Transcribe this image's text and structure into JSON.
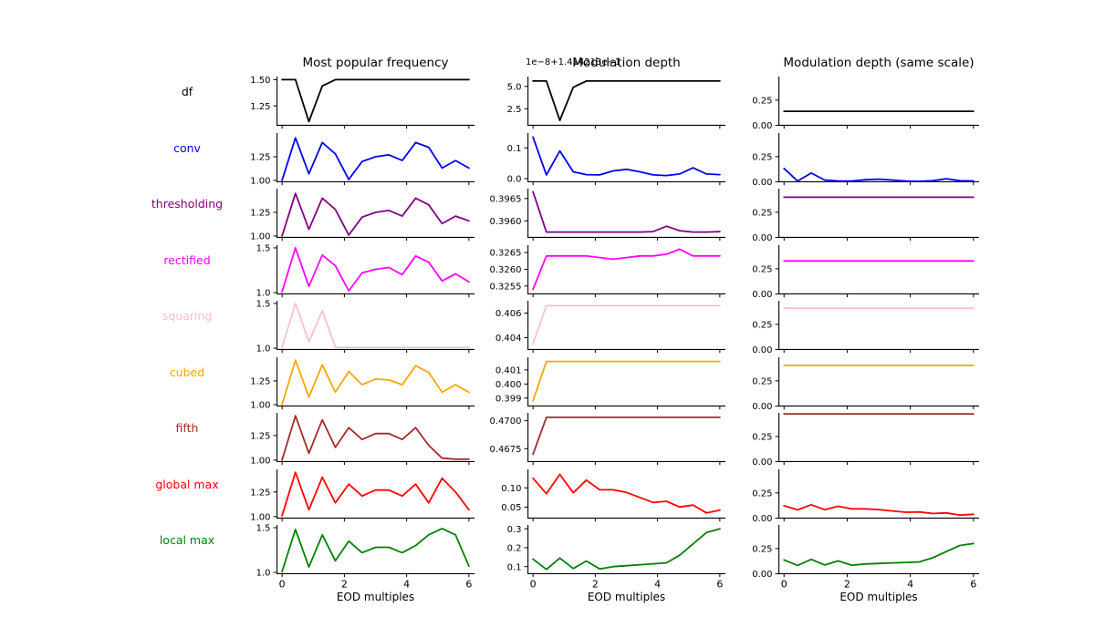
{
  "figure": {
    "background": "#ffffff"
  },
  "chart_data": {
    "type": "line",
    "xlabel": "EOD multiples",
    "x": [
      0,
      0.43,
      0.86,
      1.29,
      1.71,
      2.14,
      2.57,
      3.0,
      3.43,
      3.86,
      4.29,
      4.71,
      5.14,
      5.57,
      6.0
    ],
    "x_ticks": [
      0,
      2,
      4,
      6
    ],
    "x_tick_labels": [
      "0",
      "2",
      "4",
      "6"
    ],
    "column_titles": [
      "Most popular frequency",
      "Modulation depth",
      "Modulation depth (same scale)"
    ],
    "depth_offset_text": "1e−8+1.414213e−1",
    "same_scale_ylim": [
      0,
      0.48
    ],
    "rows": [
      {
        "label": "df",
        "color": "#000000",
        "freq": {
          "values": [
            1.5,
            1.5,
            1.1,
            1.44,
            1.5,
            1.5,
            1.5,
            1.5,
            1.5,
            1.5,
            1.5,
            1.5,
            1.5,
            1.5,
            1.5
          ],
          "ylim": [
            1.06,
            1.53
          ],
          "yticks": [
            [
              1.5,
              "1.50"
            ],
            [
              1.25,
              "1.25"
            ]
          ]
        },
        "depth": {
          "values": [
            5.6,
            5.6,
            1.2,
            4.9,
            5.6,
            5.6,
            5.6,
            5.6,
            5.6,
            5.6,
            5.6,
            5.6,
            5.6,
            5.6,
            5.6
          ],
          "ylim": [
            0.6,
            6.1
          ],
          "yticks": [
            [
              5.0,
              "5.0"
            ],
            [
              2.5,
              "2.5"
            ]
          ]
        },
        "same": {
          "flat": 0.1414,
          "ylim": [
            0,
            0.48
          ],
          "yticks": [
            [
              0.25,
              "0.25"
            ],
            [
              0.0,
              "0.00"
            ]
          ]
        }
      },
      {
        "label": "conv",
        "color": "#0000ee",
        "freq": {
          "values": [
            1.0,
            1.45,
            1.07,
            1.4,
            1.28,
            1.01,
            1.2,
            1.25,
            1.27,
            1.21,
            1.4,
            1.35,
            1.13,
            1.21,
            1.13
          ],
          "ylim": [
            0.98,
            1.5
          ],
          "yticks": [
            [
              1.25,
              "1.25"
            ],
            [
              1.0,
              "1.00"
            ]
          ]
        },
        "depth": {
          "values": [
            0.135,
            0.012,
            0.09,
            0.022,
            0.013,
            0.012,
            0.025,
            0.03,
            0.022,
            0.012,
            0.01,
            0.015,
            0.035,
            0.015,
            0.013
          ],
          "ylim": [
            -0.012,
            0.148
          ],
          "yticks": [
            [
              0.1,
              "0.1"
            ],
            [
              0.0,
              "0.0"
            ]
          ]
        },
        "same": {
          "values": [
            0.135,
            0.012,
            0.09,
            0.022,
            0.013,
            0.012,
            0.025,
            0.03,
            0.022,
            0.012,
            0.01,
            0.015,
            0.035,
            0.015,
            0.013
          ],
          "ylim": [
            0,
            0.48
          ],
          "yticks": [
            [
              0.25,
              "0.25"
            ],
            [
              0.0,
              "0.00"
            ]
          ]
        }
      },
      {
        "label": "thresholding",
        "color": "#800080",
        "freq": {
          "values": [
            1.0,
            1.45,
            1.07,
            1.4,
            1.28,
            1.01,
            1.2,
            1.25,
            1.27,
            1.21,
            1.4,
            1.33,
            1.13,
            1.21,
            1.16
          ],
          "ylim": [
            0.98,
            1.5
          ],
          "yticks": [
            [
              1.25,
              "1.25"
            ],
            [
              1.0,
              "1.00"
            ]
          ]
        },
        "depth": {
          "values": [
            0.39665,
            0.39575,
            0.39575,
            0.39575,
            0.39575,
            0.39575,
            0.39575,
            0.39575,
            0.39575,
            0.39576,
            0.39588,
            0.39578,
            0.39575,
            0.39575,
            0.39576
          ],
          "ylim": [
            0.39562,
            0.39672
          ],
          "yticks": [
            [
              0.3965,
              "0.3965"
            ],
            [
              0.396,
              "0.3960"
            ]
          ]
        },
        "same": {
          "flat": 0.396,
          "ylim": [
            0,
            0.48
          ],
          "yticks": [
            [
              0.25,
              "0.25"
            ],
            [
              0.0,
              "0.00"
            ]
          ]
        }
      },
      {
        "label": "rectified",
        "color": "#ff00ff",
        "freq": {
          "values": [
            1.01,
            1.5,
            1.07,
            1.42,
            1.3,
            1.02,
            1.22,
            1.26,
            1.28,
            1.2,
            1.41,
            1.34,
            1.13,
            1.21,
            1.12
          ],
          "ylim": [
            0.98,
            1.53
          ],
          "yticks": [
            [
              1.5,
              "1.5"
            ],
            [
              1.0,
              "1.0"
            ]
          ]
        },
        "depth": {
          "values": [
            0.3254,
            0.3264,
            0.3264,
            0.3264,
            0.3264,
            0.32635,
            0.3263,
            0.32635,
            0.3264,
            0.3264,
            0.32645,
            0.3266,
            0.3264,
            0.3264,
            0.3264
          ],
          "ylim": [
            0.32525,
            0.32672
          ],
          "yticks": [
            [
              0.3265,
              "0.3265"
            ],
            [
              0.326,
              "0.3260"
            ],
            [
              0.3255,
              "0.3255"
            ]
          ]
        },
        "same": {
          "flat": 0.326,
          "ylim": [
            0,
            0.48
          ],
          "yticks": [
            [
              0.25,
              "0.25"
            ],
            [
              0.0,
              "0.00"
            ]
          ]
        }
      },
      {
        "label": "squaring",
        "color": "#ffc0cb",
        "freq": {
          "values": [
            1.01,
            1.5,
            1.07,
            1.42,
            1.01,
            1.01,
            1.01,
            1.01,
            1.01,
            1.01,
            1.01,
            1.01,
            1.01,
            1.01,
            1.01
          ],
          "ylim": [
            0.98,
            1.53
          ],
          "yticks": [
            [
              1.5,
              "1.5"
            ],
            [
              1.0,
              "1.0"
            ]
          ]
        },
        "depth": {
          "values": [
            0.4035,
            0.4066,
            0.4066,
            0.4066,
            0.4066,
            0.4066,
            0.4066,
            0.4066,
            0.4066,
            0.4066,
            0.4066,
            0.4066,
            0.4066,
            0.4066,
            0.4066
          ],
          "ylim": [
            0.403,
            0.407
          ],
          "yticks": [
            [
              0.406,
              "0.406"
            ],
            [
              0.404,
              "0.404"
            ]
          ]
        },
        "same": {
          "flat": 0.407,
          "ylim": [
            0,
            0.48
          ],
          "yticks": [
            [
              0.25,
              "0.25"
            ],
            [
              0.0,
              "0.00"
            ]
          ]
        }
      },
      {
        "label": "cubed",
        "color": "#ffa500",
        "freq": {
          "values": [
            1.0,
            1.47,
            1.08,
            1.42,
            1.13,
            1.35,
            1.21,
            1.27,
            1.26,
            1.21,
            1.41,
            1.34,
            1.13,
            1.21,
            1.13
          ],
          "ylim": [
            0.98,
            1.5
          ],
          "yticks": [
            [
              1.25,
              "1.25"
            ],
            [
              1.0,
              "1.00"
            ]
          ]
        },
        "depth": {
          "values": [
            0.3988,
            0.4016,
            0.4016,
            0.4016,
            0.4016,
            0.4016,
            0.4016,
            0.4016,
            0.4016,
            0.4016,
            0.4016,
            0.4016,
            0.4016,
            0.4016,
            0.4016
          ],
          "ylim": [
            0.3984,
            0.4019
          ],
          "yticks": [
            [
              0.401,
              "0.401"
            ],
            [
              0.4,
              "0.400"
            ],
            [
              0.399,
              "0.399"
            ]
          ]
        },
        "same": {
          "flat": 0.401,
          "ylim": [
            0,
            0.48
          ],
          "yticks": [
            [
              0.25,
              "0.25"
            ],
            [
              0.0,
              "0.00"
            ]
          ]
        }
      },
      {
        "label": "fifth",
        "color": "#a52a2a",
        "freq": {
          "values": [
            1.0,
            1.45,
            1.07,
            1.41,
            1.13,
            1.33,
            1.21,
            1.27,
            1.27,
            1.21,
            1.33,
            1.15,
            1.02,
            1.01,
            1.01
          ],
          "ylim": [
            0.98,
            1.48
          ],
          "yticks": [
            [
              1.25,
              "1.25"
            ],
            [
              1.0,
              "1.00"
            ]
          ]
        },
        "depth": {
          "values": [
            0.467,
            0.4703,
            0.4703,
            0.4703,
            0.4703,
            0.4703,
            0.4703,
            0.4703,
            0.4703,
            0.4703,
            0.4703,
            0.4703,
            0.4703,
            0.4703,
            0.4703
          ],
          "ylim": [
            0.4663,
            0.4707
          ],
          "yticks": [
            [
              0.47,
              "0.4700"
            ],
            [
              0.4675,
              "0.4675"
            ]
          ]
        },
        "same": {
          "flat": 0.47,
          "ylim": [
            0,
            0.48
          ],
          "yticks": [
            [
              0.25,
              "0.25"
            ],
            [
              0.0,
              "0.00"
            ]
          ]
        }
      },
      {
        "label": "global max",
        "color": "#ff0000",
        "freq": {
          "values": [
            1.01,
            1.45,
            1.07,
            1.4,
            1.14,
            1.33,
            1.21,
            1.27,
            1.27,
            1.21,
            1.33,
            1.14,
            1.39,
            1.25,
            1.07
          ],
          "ylim": [
            0.98,
            1.48
          ],
          "yticks": [
            [
              1.25,
              "1.25"
            ],
            [
              1.0,
              "1.00"
            ]
          ]
        },
        "depth": {
          "values": [
            0.125,
            0.085,
            0.135,
            0.087,
            0.12,
            0.095,
            0.095,
            0.088,
            0.075,
            0.062,
            0.065,
            0.05,
            0.055,
            0.035,
            0.042
          ],
          "ylim": [
            0.02,
            0.148
          ],
          "yticks": [
            [
              0.1,
              "0.10"
            ],
            [
              0.05,
              "0.05"
            ]
          ]
        },
        "same": {
          "values": [
            0.125,
            0.085,
            0.135,
            0.087,
            0.12,
            0.095,
            0.095,
            0.088,
            0.075,
            0.062,
            0.065,
            0.05,
            0.055,
            0.035,
            0.042
          ],
          "ylim": [
            0,
            0.48
          ],
          "yticks": [
            [
              0.25,
              "0.25"
            ],
            [
              0.0,
              "0.00"
            ]
          ]
        }
      },
      {
        "label": "local max",
        "color": "#008000",
        "freq": {
          "values": [
            1.01,
            1.48,
            1.06,
            1.42,
            1.13,
            1.35,
            1.22,
            1.28,
            1.28,
            1.22,
            1.3,
            1.42,
            1.49,
            1.42,
            1.07
          ],
          "ylim": [
            0.98,
            1.53
          ],
          "yticks": [
            [
              1.5,
              "1.5"
            ],
            [
              1.0,
              "1.0"
            ]
          ]
        },
        "depth": {
          "values": [
            0.14,
            0.085,
            0.145,
            0.09,
            0.13,
            0.088,
            0.1,
            0.105,
            0.11,
            0.115,
            0.12,
            0.16,
            0.22,
            0.28,
            0.3
          ],
          "ylim": [
            0.06,
            0.32
          ],
          "yticks": [
            [
              0.3,
              "0.3"
            ],
            [
              0.2,
              "0.2"
            ],
            [
              0.1,
              "0.1"
            ]
          ]
        },
        "same": {
          "values": [
            0.14,
            0.085,
            0.145,
            0.09,
            0.13,
            0.088,
            0.1,
            0.105,
            0.11,
            0.115,
            0.12,
            0.16,
            0.22,
            0.28,
            0.3
          ],
          "ylim": [
            0,
            0.48
          ],
          "yticks": [
            [
              0.25,
              "0.25"
            ],
            [
              0.0,
              "0.00"
            ]
          ]
        }
      }
    ]
  }
}
